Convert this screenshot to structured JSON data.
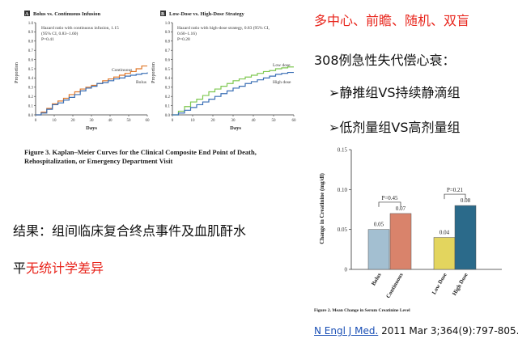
{
  "slide": {
    "headline": "多中心、前瞻、随机、双盲",
    "patients": "308例急性失代偿心衰：",
    "comparisons": [
      "静推组VS持续静滴组",
      "低剂量组VS高剂量组"
    ],
    "result_line1": "结果：组间临床复合终点事件及血肌酐水",
    "result_line2_black": "平",
    "result_line2_red": "无统计学差异",
    "citation_link": "N Engl J Med.",
    "citation_rest": " 2011 Mar 3;364(9):797-805."
  },
  "km_caption": {
    "line1": "Figure 3. Kaplan–Meier Curves for the Clinical Composite End Point of Death,",
    "line2": "Rehospitalization, or Emergency Department Visit"
  },
  "bar_caption": "Figure 2. Mean Change in Serum Creatinine Level",
  "colors": {
    "red_text": "#e8251c",
    "km_blue": "#3a6fb5",
    "km_orange": "#e0782a",
    "km_green": "#7ec850",
    "bar_bolus": "#a3bfd1",
    "bar_continuous": "#d9836b",
    "bar_low": "#e3d55e",
    "bar_high": "#2b6a8a"
  },
  "chart_data": [
    {
      "type": "line",
      "panel": "A",
      "title": "Bolus vs. Continuous Infusion",
      "annotation": [
        "Hazard ratio with continuous infusion, 1.15",
        "(95% CI, 0.83–1.60)",
        "P=0.41"
      ],
      "xlabel": "Days",
      "ylabel": "Proportion",
      "xlim": [
        0,
        60
      ],
      "ylim": [
        0,
        1.0
      ],
      "xticks": [
        "0",
        "10",
        "20",
        "30",
        "40",
        "50",
        "60"
      ],
      "yticks": [
        "0.0",
        "0.1",
        "0.2",
        "0.3",
        "0.4",
        "0.5",
        "0.6",
        "0.7",
        "0.8",
        "0.9",
        "1.0"
      ],
      "series": [
        {
          "name": "Continuous",
          "color": "#e0782a",
          "x": [
            0,
            3,
            6,
            9,
            12,
            15,
            18,
            21,
            24,
            27,
            30,
            33,
            36,
            39,
            42,
            45,
            48,
            51,
            54,
            57,
            60
          ],
          "y": [
            0.0,
            0.03,
            0.07,
            0.12,
            0.15,
            0.18,
            0.22,
            0.25,
            0.28,
            0.3,
            0.32,
            0.34,
            0.37,
            0.39,
            0.41,
            0.43,
            0.45,
            0.47,
            0.5,
            0.53,
            0.53
          ]
        },
        {
          "name": "Bolus",
          "color": "#3a6fb5",
          "x": [
            0,
            3,
            6,
            9,
            12,
            15,
            18,
            21,
            24,
            27,
            30,
            33,
            36,
            39,
            42,
            45,
            48,
            51,
            54,
            57,
            60
          ],
          "y": [
            0.0,
            0.02,
            0.06,
            0.11,
            0.13,
            0.16,
            0.19,
            0.22,
            0.26,
            0.29,
            0.31,
            0.34,
            0.35,
            0.37,
            0.39,
            0.4,
            0.42,
            0.43,
            0.44,
            0.45,
            0.46
          ]
        }
      ]
    },
    {
      "type": "line",
      "panel": "B",
      "title": "Low-Dose vs. High-Dose Strategy",
      "annotation": [
        "Hazard ratio with high-dose strategy, 0.83 (95% CI,",
        "0.60–1.16)",
        "P=0.28"
      ],
      "xlabel": "Days",
      "ylabel": "Proportion",
      "xlim": [
        0,
        60
      ],
      "ylim": [
        0,
        1.0
      ],
      "xticks": [
        "0",
        "10",
        "20",
        "30",
        "40",
        "50",
        "60"
      ],
      "yticks": [
        "0.0",
        "0.1",
        "0.2",
        "0.3",
        "0.4",
        "0.5",
        "0.6",
        "0.7",
        "0.8",
        "0.9",
        "1.0"
      ],
      "series": [
        {
          "name": "Low dose",
          "color": "#7ec850",
          "x": [
            0,
            3,
            6,
            9,
            12,
            15,
            18,
            21,
            24,
            27,
            30,
            33,
            36,
            39,
            42,
            45,
            48,
            51,
            54,
            57,
            60
          ],
          "y": [
            0.0,
            0.04,
            0.09,
            0.14,
            0.17,
            0.21,
            0.25,
            0.28,
            0.31,
            0.34,
            0.37,
            0.39,
            0.41,
            0.43,
            0.45,
            0.47,
            0.48,
            0.5,
            0.51,
            0.52,
            0.52
          ]
        },
        {
          "name": "High dose",
          "color": "#3a6fb5",
          "x": [
            0,
            3,
            6,
            9,
            12,
            15,
            18,
            21,
            24,
            27,
            30,
            33,
            36,
            39,
            42,
            45,
            48,
            51,
            54,
            57,
            60
          ],
          "y": [
            0.0,
            0.02,
            0.05,
            0.08,
            0.11,
            0.14,
            0.17,
            0.2,
            0.23,
            0.26,
            0.29,
            0.31,
            0.34,
            0.36,
            0.38,
            0.4,
            0.42,
            0.44,
            0.45,
            0.46,
            0.46
          ]
        }
      ]
    },
    {
      "type": "bar",
      "title": "Mean Change in Serum Creatinine Level",
      "ylabel": "Change in Creatinine (mg/dl)",
      "ylim": [
        0,
        0.15
      ],
      "yticks": [
        "0",
        "0.05",
        "0.10",
        "0.15"
      ],
      "categories": [
        "Bolus",
        "Continuous",
        "Low Dose",
        "High Dose"
      ],
      "values": [
        0.05,
        0.07,
        0.04,
        0.08
      ],
      "value_labels": [
        "0.05",
        "0.07",
        "0.04",
        "0.08"
      ],
      "bar_colors": [
        "#a3bfd1",
        "#d9836b",
        "#e3d55e",
        "#2b6a8a"
      ],
      "comparisons": [
        {
          "label": "P=0.45",
          "between": [
            "Bolus",
            "Continuous"
          ]
        },
        {
          "label": "P=0.21",
          "between": [
            "Low Dose",
            "High Dose"
          ]
        }
      ]
    }
  ]
}
